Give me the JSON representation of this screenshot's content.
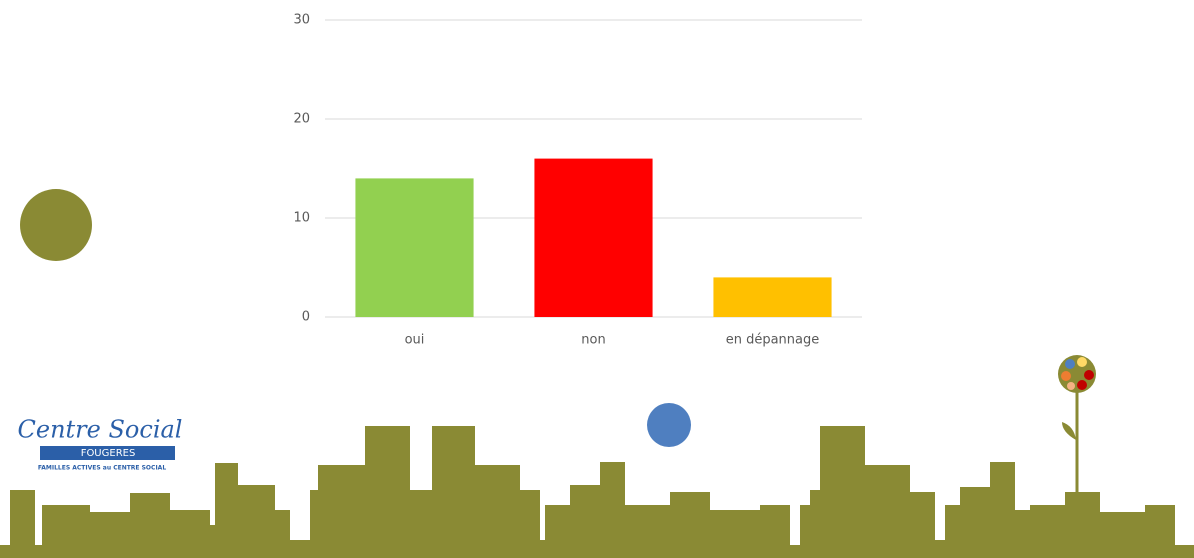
{
  "chart_data": {
    "type": "bar",
    "categories": [
      "oui",
      "non",
      "en dépannage"
    ],
    "values": [
      14,
      16,
      4
    ],
    "colors": [
      "#92d050",
      "#ff0000",
      "#ffc000"
    ],
    "ylim": [
      0,
      30
    ],
    "yticks": [
      0,
      10,
      20,
      30
    ],
    "grid": true
  },
  "logo": {
    "title": "Centre Social",
    "town": "FOUGERES",
    "tagline": "FAMILLES ACTIVES au CENTRE SOCIAL"
  }
}
